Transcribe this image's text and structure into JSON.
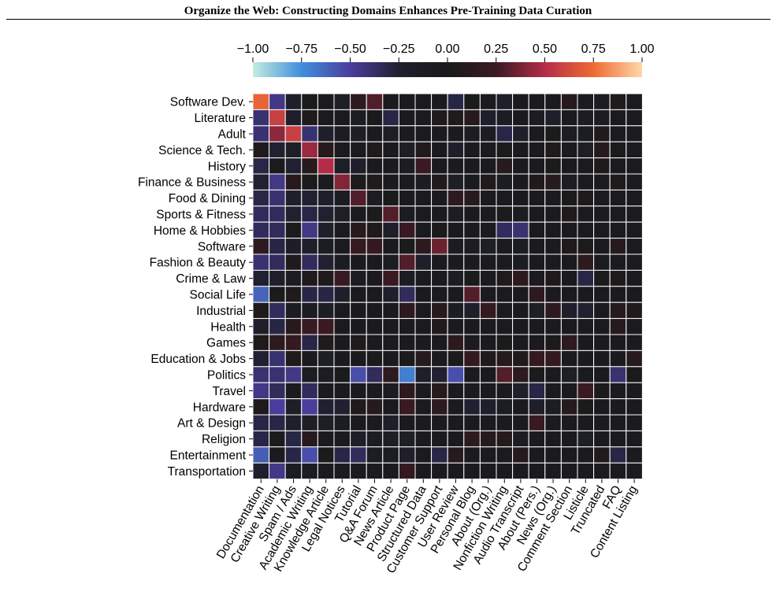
{
  "header": {
    "title": "Organize the Web: Constructing Domains Enhances Pre-Training Data Curation"
  },
  "chart_data": {
    "type": "heatmap",
    "title": "",
    "colorbar": {
      "range": [
        -1.0,
        1.0
      ],
      "ticks": [
        "−1.00",
        "−0.75",
        "−0.50",
        "−0.25",
        "0.00",
        "0.25",
        "0.50",
        "0.75",
        "1.00"
      ],
      "tick_values": [
        -1.0,
        -0.75,
        -0.5,
        -0.25,
        0.0,
        0.25,
        0.5,
        0.75,
        1.0
      ],
      "colormap": [
        "#c4ece0",
        "#3f8fdc",
        "#4a3e9c",
        "#202030",
        "#1a1a1a",
        "#3a1a22",
        "#b32d48",
        "#ef6a34",
        "#ffd7a8"
      ],
      "position": "top"
    },
    "rows": [
      "Software Dev.",
      "Literature",
      "Adult",
      "Science & Tech.",
      "History",
      "Finance & Business",
      "Food & Dining",
      "Sports & Fitness",
      "Home & Hobbies",
      "Software",
      "Fashion & Beauty",
      "Crime & Law",
      "Social Life",
      "Industrial",
      "Health",
      "Games",
      "Education & Jobs",
      "Politics",
      "Travel",
      "Hardware",
      "Art & Design",
      "Religion",
      "Entertainment",
      "Transportation"
    ],
    "columns": [
      "Documentation",
      "Creative Writing",
      "Spam / Ads",
      "Academic Writing",
      "Knowledge Article",
      "Legal Notices",
      "Tutorial",
      "Q&A Forum",
      "News Article",
      "Product Page",
      "Structured Data",
      "Customer Support",
      "User Review",
      "Personal Blog",
      "About (Org.)",
      "Nonfiction Writing",
      "Audio Transcript",
      "About (Pers.)",
      "News (Org.)",
      "Comment Section",
      "Listicle",
      "Truncated",
      "FAQ",
      "Content Listing"
    ],
    "values": [
      [
        0.72,
        -0.45,
        -0.2,
        -0.05,
        -0.05,
        -0.15,
        0.15,
        0.3,
        -0.05,
        -0.05,
        -0.05,
        -0.05,
        -0.3,
        -0.05,
        -0.05,
        -0.2,
        -0.05,
        -0.05,
        -0.05,
        0.1,
        -0.05,
        -0.1,
        0.05,
        -0.05
      ],
      [
        -0.4,
        0.58,
        -0.2,
        0.05,
        -0.05,
        -0.05,
        -0.1,
        -0.05,
        -0.3,
        -0.05,
        -0.05,
        0.05,
        0.05,
        0.1,
        -0.2,
        -0.1,
        -0.05,
        -0.1,
        -0.2,
        -0.05,
        -0.1,
        -0.1,
        -0.05,
        -0.05
      ],
      [
        -0.4,
        0.42,
        0.58,
        -0.4,
        -0.2,
        -0.1,
        -0.15,
        -0.05,
        -0.15,
        -0.05,
        -0.05,
        -0.05,
        -0.05,
        -0.1,
        -0.1,
        -0.3,
        -0.2,
        -0.05,
        -0.05,
        -0.1,
        -0.1,
        0.05,
        -0.05,
        -0.05
      ],
      [
        0.05,
        -0.25,
        -0.15,
        0.45,
        0.1,
        -0.05,
        -0.05,
        0.05,
        -0.05,
        -0.15,
        0.05,
        -0.05,
        -0.2,
        -0.05,
        -0.05,
        -0.05,
        -0.05,
        -0.05,
        0.05,
        -0.05,
        -0.15,
        0.1,
        -0.05,
        -0.05
      ],
      [
        -0.3,
        -0.05,
        -0.25,
        0.1,
        0.5,
        -0.15,
        -0.2,
        -0.05,
        -0.05,
        -0.1,
        0.25,
        -0.05,
        -0.05,
        -0.05,
        -0.05,
        0.1,
        -0.05,
        -0.05,
        -0.05,
        -0.05,
        -0.05,
        0.05,
        -0.05,
        -0.05
      ],
      [
        -0.25,
        -0.45,
        0.1,
        -0.05,
        -0.05,
        0.4,
        -0.05,
        0.05,
        -0.05,
        -0.05,
        -0.1,
        0.05,
        -0.15,
        -0.05,
        0.05,
        -0.1,
        -0.05,
        0.05,
        0.1,
        -0.1,
        -0.05,
        -0.05,
        0.05,
        -0.05
      ],
      [
        -0.3,
        -0.4,
        -0.2,
        -0.25,
        -0.2,
        -0.1,
        0.3,
        -0.1,
        -0.05,
        -0.05,
        -0.05,
        -0.05,
        0.15,
        0.1,
        -0.05,
        -0.05,
        -0.05,
        -0.05,
        -0.05,
        -0.05,
        0.05,
        -0.05,
        -0.05,
        -0.05
      ],
      [
        -0.35,
        -0.35,
        -0.25,
        -0.3,
        -0.25,
        -0.15,
        -0.05,
        -0.05,
        0.3,
        -0.1,
        -0.05,
        -0.05,
        -0.1,
        -0.05,
        -0.05,
        -0.05,
        -0.1,
        -0.05,
        -0.05,
        0.05,
        -0.05,
        -0.05,
        -0.05,
        -0.05
      ],
      [
        -0.35,
        -0.35,
        -0.05,
        -0.45,
        -0.2,
        -0.05,
        0.1,
        0.05,
        -0.2,
        0.25,
        -0.05,
        -0.05,
        -0.05,
        -0.05,
        -0.05,
        -0.35,
        -0.4,
        -0.05,
        -0.05,
        -0.05,
        -0.05,
        -0.05,
        -0.05,
        -0.05
      ],
      [
        0.15,
        -0.3,
        -0.15,
        -0.2,
        -0.1,
        -0.05,
        0.2,
        0.2,
        -0.05,
        -0.05,
        0.15,
        0.35,
        -0.1,
        -0.1,
        -0.15,
        -0.05,
        -0.1,
        -0.05,
        -0.05,
        0.05,
        -0.05,
        -0.05,
        0.1,
        -0.05
      ],
      [
        -0.4,
        -0.35,
        0.05,
        -0.35,
        -0.25,
        -0.1,
        -0.05,
        -0.05,
        -0.1,
        0.3,
        -0.2,
        -0.05,
        -0.05,
        -0.05,
        -0.05,
        -0.05,
        -0.1,
        -0.05,
        -0.05,
        -0.05,
        0.15,
        -0.05,
        -0.05,
        -0.05
      ],
      [
        -0.25,
        -0.2,
        -0.1,
        0.05,
        0.05,
        0.25,
        -0.1,
        -0.05,
        0.25,
        -0.1,
        -0.05,
        -0.05,
        -0.1,
        -0.05,
        -0.05,
        0.05,
        0.15,
        -0.05,
        0.05,
        -0.05,
        -0.3,
        -0.05,
        0.05,
        -0.05
      ],
      [
        -0.62,
        -0.05,
        0.05,
        -0.3,
        -0.3,
        -0.2,
        -0.05,
        -0.05,
        -0.2,
        -0.35,
        -0.05,
        -0.05,
        -0.05,
        0.3,
        -0.05,
        -0.05,
        -0.05,
        0.15,
        -0.05,
        -0.05,
        -0.05,
        -0.05,
        -0.05,
        -0.05
      ],
      [
        0.05,
        -0.35,
        -0.1,
        -0.1,
        -0.15,
        -0.05,
        -0.05,
        -0.05,
        -0.05,
        0.15,
        -0.05,
        0.1,
        -0.1,
        -0.2,
        0.2,
        -0.05,
        -0.05,
        -0.15,
        0.15,
        -0.2,
        -0.25,
        -0.05,
        0.1,
        0.05
      ],
      [
        -0.2,
        -0.3,
        0.1,
        0.25,
        0.25,
        -0.05,
        -0.05,
        -0.05,
        -0.05,
        -0.05,
        -0.05,
        0.05,
        -0.05,
        -0.05,
        -0.05,
        -0.05,
        -0.05,
        -0.05,
        -0.05,
        -0.05,
        -0.05,
        -0.05,
        0.1,
        -0.05
      ],
      [
        0.05,
        0.15,
        0.2,
        -0.3,
        0.05,
        -0.05,
        0.05,
        -0.05,
        -0.05,
        -0.05,
        -0.05,
        -0.05,
        0.15,
        -0.05,
        -0.05,
        -0.05,
        -0.05,
        -0.05,
        -0.05,
        0.15,
        -0.05,
        -0.05,
        -0.05,
        -0.05
      ],
      [
        -0.25,
        -0.4,
        0.05,
        -0.05,
        -0.15,
        -0.05,
        -0.05,
        -0.05,
        -0.05,
        -0.05,
        0.1,
        -0.05,
        -0.05,
        0.2,
        0.05,
        0.1,
        0.05,
        0.2,
        0.2,
        -0.05,
        -0.05,
        -0.05,
        -0.05,
        0.1
      ],
      [
        -0.4,
        -0.4,
        -0.45,
        -0.1,
        -0.1,
        -0.05,
        -0.55,
        -0.35,
        0.15,
        -0.7,
        -0.2,
        -0.25,
        -0.55,
        -0.05,
        -0.05,
        0.3,
        0.15,
        -0.05,
        -0.05,
        -0.15,
        -0.05,
        -0.05,
        -0.4,
        -0.05
      ],
      [
        -0.45,
        -0.35,
        -0.05,
        -0.35,
        -0.05,
        -0.05,
        -0.05,
        -0.05,
        -0.1,
        0.15,
        -0.05,
        0.1,
        -0.05,
        -0.05,
        -0.05,
        -0.05,
        -0.2,
        -0.3,
        -0.05,
        -0.05,
        0.25,
        -0.05,
        -0.05,
        -0.05
      ],
      [
        0.05,
        -0.5,
        -0.15,
        -0.5,
        -0.25,
        -0.25,
        0.05,
        0.1,
        -0.05,
        0.25,
        -0.05,
        0.15,
        -0.05,
        -0.25,
        -0.2,
        -0.1,
        -0.05,
        -0.2,
        -0.1,
        0.1,
        -0.05,
        -0.05,
        -0.05,
        -0.05
      ],
      [
        -0.3,
        -0.3,
        -0.2,
        -0.15,
        -0.15,
        -0.1,
        -0.05,
        -0.05,
        -0.2,
        -0.05,
        -0.05,
        -0.05,
        -0.05,
        -0.05,
        -0.05,
        -0.05,
        -0.05,
        0.25,
        -0.05,
        -0.05,
        -0.05,
        -0.05,
        -0.05,
        -0.05
      ],
      [
        -0.3,
        -0.05,
        -0.3,
        0.1,
        -0.05,
        -0.05,
        -0.15,
        -0.1,
        -0.15,
        -0.15,
        -0.05,
        -0.05,
        -0.05,
        0.15,
        0.1,
        0.1,
        -0.1,
        -0.05,
        -0.05,
        -0.05,
        -0.15,
        -0.05,
        -0.05,
        -0.05
      ],
      [
        -0.6,
        -0.05,
        -0.3,
        -0.55,
        -0.05,
        -0.3,
        -0.35,
        -0.1,
        -0.1,
        -0.2,
        -0.05,
        -0.3,
        0.1,
        -0.05,
        -0.05,
        -0.05,
        0.1,
        -0.05,
        -0.05,
        -0.05,
        -0.05,
        0.05,
        -0.3,
        -0.05
      ],
      [
        -0.2,
        -0.45,
        -0.1,
        -0.1,
        -0.05,
        -0.05,
        -0.05,
        -0.05,
        -0.05,
        0.2,
        -0.05,
        -0.05,
        -0.05,
        -0.05,
        -0.05,
        -0.05,
        -0.05,
        -0.05,
        -0.05,
        -0.05,
        -0.05,
        -0.05,
        -0.05,
        -0.05
      ]
    ]
  }
}
